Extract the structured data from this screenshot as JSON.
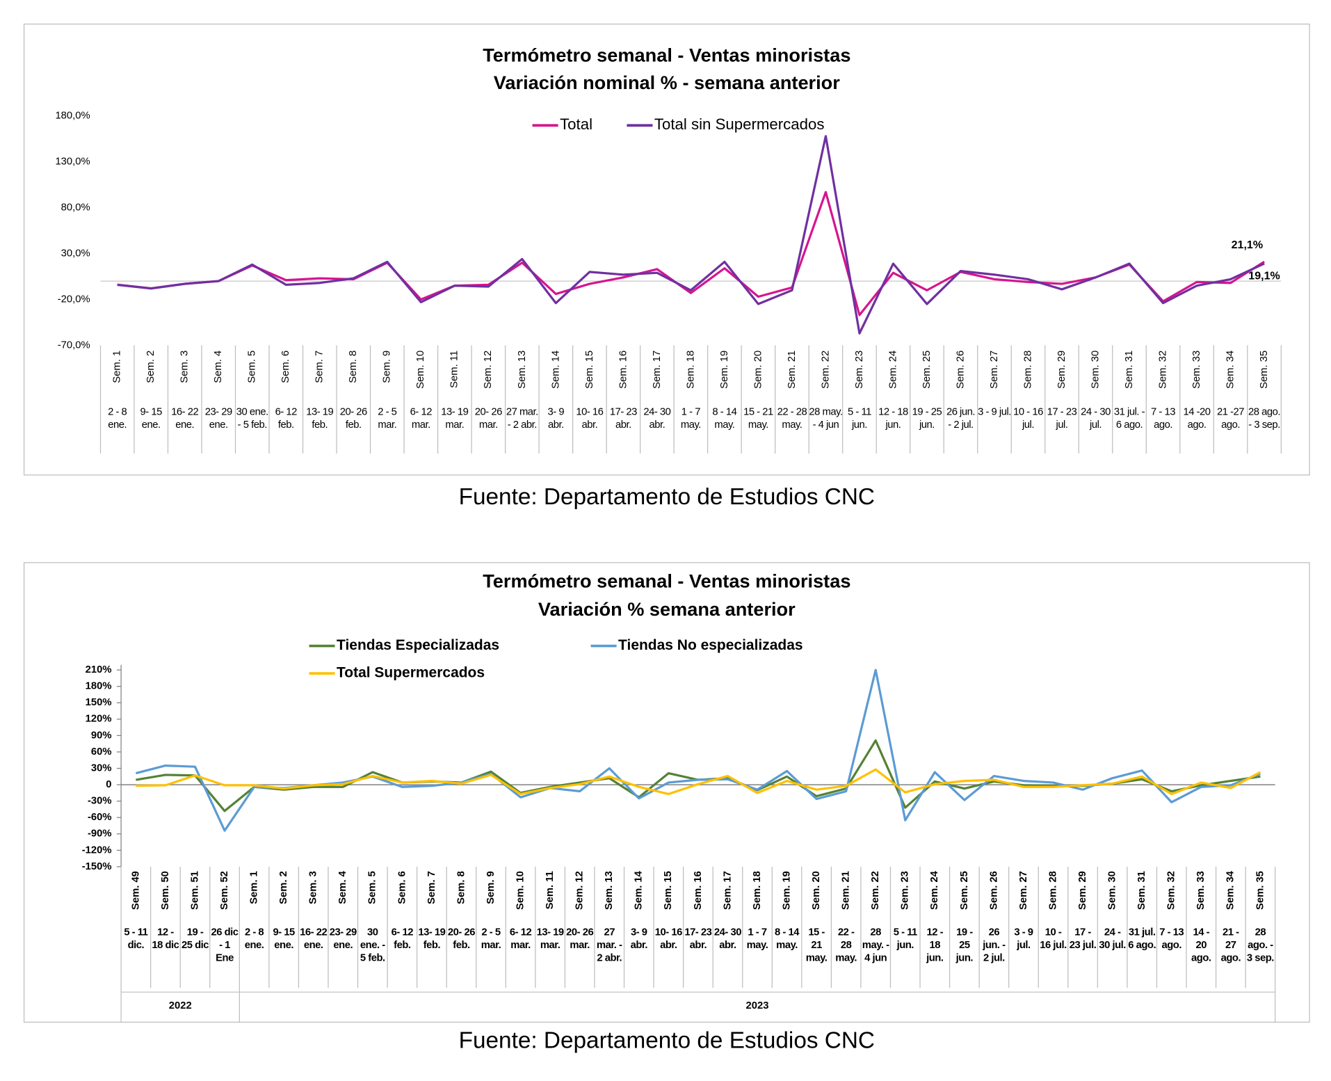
{
  "chart_data": [
    {
      "type": "line",
      "title": "Termómetro semanal - Ventas minoristas",
      "subtitle": "Variación nominal % - semana anterior",
      "source": "Fuente: Departamento de Estudios CNC",
      "categories": [
        "Sem. 1",
        "Sem. 2",
        "Sem. 3",
        "Sem. 4",
        "Sem. 5",
        "Sem. 6",
        "Sem. 7",
        "Sem. 8",
        "Sem. 9",
        "Sem. 10",
        "Sem. 11",
        "Sem. 12",
        "Sem. 13",
        "Sem. 14",
        "Sem. 15",
        "Sem. 16",
        "Sem. 17",
        "Sem. 18",
        "Sem. 19",
        "Sem. 20",
        "Sem. 21",
        "Sem. 22",
        "Sem. 23",
        "Sem. 24",
        "Sem. 25",
        "Sem. 26",
        "Sem. 27",
        "Sem. 28",
        "Sem. 29",
        "Sem. 30",
        "Sem. 31",
        "Sem. 32",
        "Sem. 33",
        "Sem. 34",
        "Sem. 35"
      ],
      "dates": [
        "2 - 8 ene.",
        "9- 15 ene.",
        "16- 22 ene.",
        "23- 29 ene.",
        "30 ene. - 5 feb.",
        "6- 12 feb.",
        "13- 19 feb.",
        "20- 26 feb.",
        "2 - 5 mar.",
        "6- 12 mar.",
        "13- 19 mar.",
        "20- 26 mar.",
        "27 mar. - 2 abr.",
        "3- 9 abr.",
        "10- 16 abr.",
        "17- 23 abr.",
        "24- 30 abr.",
        "1 - 7 may.",
        "8 - 14 may.",
        "15 - 21 may.",
        "22 - 28 may.",
        "28 may. - 4 jun",
        "5 - 11 jun.",
        "12 - 18 jun.",
        "19 - 25 jun.",
        "26 jun. - 2 jul.",
        "3 - 9 jul.",
        "10 - 16 jul.",
        "17 - 23 jul.",
        "24 - 30 jul.",
        "31 jul. - 6 ago.",
        "7 - 13 ago.",
        "14 -20 ago.",
        "21 -27 ago.",
        "28 ago. - 3 sep."
      ],
      "series": [
        {
          "name": "Total",
          "color": "#d6158f",
          "values": [
            -4,
            -8,
            -3,
            0,
            17,
            1,
            3,
            2,
            20,
            -20,
            -5,
            -4,
            20,
            -14,
            -3,
            4,
            13,
            -13,
            14,
            -17,
            -7,
            97,
            -37,
            9,
            -10,
            10,
            2,
            -1,
            -3,
            4,
            18,
            -22,
            -1,
            -2,
            21.1
          ],
          "value_labels": [
            null,
            null,
            null,
            null,
            null,
            null,
            null,
            null,
            null,
            null,
            null,
            null,
            null,
            null,
            null,
            null,
            null,
            null,
            null,
            null,
            null,
            null,
            null,
            null,
            null,
            null,
            null,
            null,
            null,
            null,
            null,
            null,
            null,
            null,
            "21,1%"
          ]
        },
        {
          "name": "Total sin Supermercados",
          "color": "#7030a0",
          "values": [
            -4,
            -8,
            -3,
            0,
            18,
            -4,
            -2,
            3,
            21,
            -23,
            -5,
            -6,
            24,
            -24,
            10,
            7,
            9,
            -10,
            21,
            -25,
            -10,
            158,
            -57,
            19,
            -25,
            11,
            7,
            2,
            -9,
            4,
            19,
            -24,
            -5,
            2,
            19.1
          ],
          "value_labels": [
            null,
            null,
            null,
            null,
            null,
            null,
            null,
            null,
            null,
            null,
            null,
            null,
            null,
            null,
            null,
            null,
            null,
            null,
            null,
            null,
            null,
            null,
            null,
            null,
            null,
            null,
            null,
            null,
            null,
            null,
            null,
            null,
            null,
            null,
            "19,1%"
          ]
        }
      ],
      "ylim": [
        -70,
        180
      ],
      "yticks": [
        {
          "value": -70,
          "label": "-70,0%"
        },
        {
          "value": -20,
          "label": "-20,0%"
        },
        {
          "value": 30,
          "label": "30,0%"
        },
        {
          "value": 80,
          "label": "80,0%"
        },
        {
          "value": 130,
          "label": "130,0%"
        },
        {
          "value": 180,
          "label": "180,0%"
        }
      ],
      "grid": false
    },
    {
      "type": "line",
      "title": "Termómetro semanal - Ventas minoristas",
      "subtitle": "Variación % semana anterior",
      "source": "Fuente: Departamento de Estudios CNC",
      "categories": [
        "Sem. 49",
        "Sem. 50",
        "Sem. 51",
        "Sem. 52",
        "Sem. 1",
        "Sem. 2",
        "Sem. 3",
        "Sem. 4",
        "Sem. 5",
        "Sem. 6",
        "Sem. 7",
        "Sem. 8",
        "Sem. 9",
        "Sem. 10",
        "Sem. 11",
        "Sem. 12",
        "Sem. 13",
        "Sem. 14",
        "Sem. 15",
        "Sem. 16",
        "Sem. 17",
        "Sem. 18",
        "Sem. 19",
        "Sem. 20",
        "Sem. 21",
        "Sem. 22",
        "Sem. 23",
        "Sem. 24",
        "Sem. 25",
        "Sem. 26",
        "Sem. 27",
        "Sem. 28",
        "Sem. 29",
        "Sem. 30",
        "Sem. 31",
        "Sem. 32",
        "Sem. 33",
        "Sem. 34",
        "Sem. 35"
      ],
      "dates": [
        "5 - 11 dic.",
        "12 - 18 dic",
        "19 - 25 dic",
        "26 dic - 1 Ene",
        "2 - 8 ene.",
        "9- 15 ene.",
        "16- 22 ene.",
        "23- 29 ene.",
        "30 ene. - 5 feb.",
        "6- 12 feb.",
        "13- 19 feb.",
        "20- 26 feb.",
        "2 - 5 mar.",
        "6- 12 mar.",
        "13- 19 mar.",
        "20- 26 mar.",
        "27 mar. - 2 abr.",
        "3- 9 abr.",
        "10- 16 abr.",
        "17- 23 abr.",
        "24- 30 abr.",
        "1 - 7 may.",
        "8 - 14 may.",
        "15 - 21 may.",
        "22 - 28 may.",
        "28 may. - 4 jun",
        "5 - 11 jun.",
        "12 - 18 jun.",
        "19 - 25 jun.",
        "26 jun. - 2 jul.",
        "3 - 9 jul.",
        "10 - 16 jul.",
        "17 - 23 jul.",
        "24 - 30 jul.",
        "31 jul. 6 ago.",
        "7 - 13 ago.",
        "14 - 20 ago.",
        "21 - 27 ago.",
        "28 ago. - 3 sep."
      ],
      "groups": [
        {
          "label": "2022",
          "span": 4
        },
        {
          "label": "2023",
          "span": 35
        }
      ],
      "series": [
        {
          "name": "Tiendas Especializadas",
          "color": "#548235",
          "values": [
            9,
            18,
            17,
            -48,
            -4,
            -9,
            -4,
            -4,
            23,
            4,
            6,
            4,
            24,
            -15,
            -4,
            4,
            12,
            -23,
            21,
            9,
            12,
            -10,
            15,
            -21,
            -7,
            81,
            -42,
            6,
            -7,
            6,
            -1,
            -2,
            -2,
            2,
            10,
            -12,
            -1,
            7,
            15
          ]
        },
        {
          "name": "Tiendas No especializadas",
          "color": "#5b9bd5",
          "values": [
            21,
            35,
            33,
            -84,
            -4,
            -6,
            -1,
            4,
            15,
            -4,
            -2,
            4,
            20,
            -23,
            -6,
            -12,
            30,
            -25,
            4,
            9,
            10,
            -9,
            25,
            -26,
            -12,
            210,
            -65,
            23,
            -28,
            16,
            7,
            4,
            -9,
            12,
            26,
            -32,
            -4,
            -1,
            20
          ]
        },
        {
          "name": "Total Supermercados",
          "color": "#ffc000",
          "values": [
            -2,
            -1,
            17,
            -1,
            -1,
            -7,
            -1,
            1,
            16,
            4,
            7,
            2,
            18,
            -17,
            -6,
            1,
            15,
            -4,
            -17,
            1,
            16,
            -15,
            7,
            -9,
            -2,
            28,
            -14,
            1,
            7,
            9,
            -4,
            -4,
            -1,
            2,
            15,
            -17,
            4,
            -6,
            23
          ]
        }
      ],
      "ylim": [
        -150,
        210
      ],
      "yticks": [
        {
          "value": -150,
          "label": "-150%"
        },
        {
          "value": -120,
          "label": "-120%"
        },
        {
          "value": -90,
          "label": "-90%"
        },
        {
          "value": -60,
          "label": "-60%"
        },
        {
          "value": -30,
          "label": "-30%"
        },
        0,
        {
          "value": 30,
          "label": "30%"
        },
        {
          "value": 60,
          "label": "60%"
        },
        {
          "value": 90,
          "label": "90%"
        },
        {
          "value": 120,
          "label": "120%"
        },
        {
          "value": 150,
          "label": "150%"
        },
        {
          "value": 180,
          "label": "180%"
        },
        {
          "value": 210,
          "label": "210%"
        }
      ],
      "grid": false
    }
  ]
}
